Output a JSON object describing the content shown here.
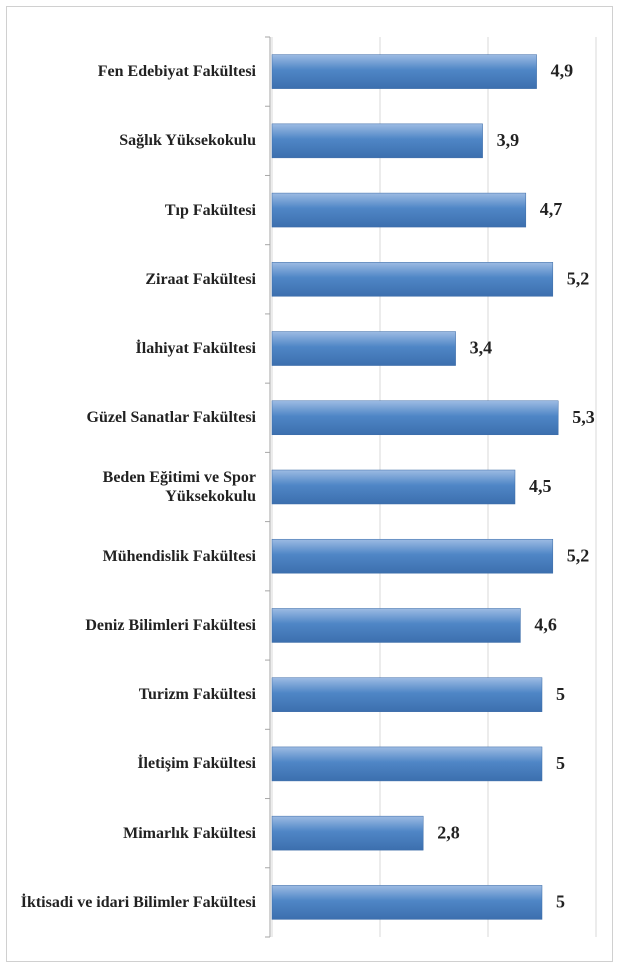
{
  "chart_data": {
    "type": "bar",
    "orientation": "horizontal",
    "categories": [
      "Fen Edebiyat Fakültesi",
      "Sağlık Yüksekokulu",
      "Tıp Fakültesi",
      "Ziraat Fakültesi",
      "İlahiyat Fakültesi",
      "Güzel Sanatlar Fakültesi",
      "Beden Eğitimi ve Spor Yüksekokulu",
      "Mühendislik Fakültesi",
      "Deniz Bilimleri Fakültesi",
      "Turizm Fakültesi",
      "İletişim Fakültesi",
      "Mimarlık Fakültesi",
      "İktisadi ve idari Bilimler Fakültesi"
    ],
    "values": [
      4.9,
      3.9,
      4.7,
      5.2,
      3.4,
      5.3,
      4.5,
      5.2,
      4.6,
      5,
      5,
      2.8,
      5
    ],
    "value_labels": [
      "4,9",
      "3,9",
      "4,7",
      "5,2",
      "3,4",
      "5,3",
      "4,5",
      "5,2",
      "4,6",
      "5",
      "5",
      "2,8",
      "5"
    ],
    "color": "#4a7ebb",
    "xlim": [
      0,
      6
    ],
    "xticks": [
      0,
      2,
      4,
      6
    ],
    "grid": true
  }
}
